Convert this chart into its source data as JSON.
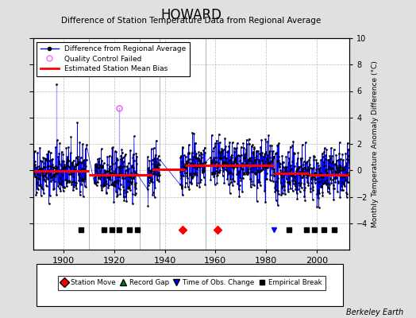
{
  "title": "HOWARD",
  "subtitle": "Difference of Station Temperature Data from Regional Average",
  "ylabel_right": "Monthly Temperature Anomaly Difference (°C)",
  "ylim": [
    -6,
    10
  ],
  "xlim": [
    1888,
    2013
  ],
  "yticks": [
    -4,
    -2,
    0,
    2,
    4,
    6,
    8,
    10
  ],
  "xticks": [
    1900,
    1920,
    1940,
    1960,
    1980,
    2000
  ],
  "background_color": "#e0e0e0",
  "plot_bg_color": "#ffffff",
  "grid_color": "#bbbbbb",
  "seed": 42,
  "station_moves": [
    1947,
    1961
  ],
  "empirical_breaks": [
    1907,
    1916,
    1919,
    1922,
    1926,
    1929,
    1989,
    1996,
    1999,
    2003,
    2007
  ],
  "time_of_obs_change": [
    1983
  ],
  "event_y": -4.5,
  "qc_failed_x": [
    1922
  ],
  "qc_failed_y": [
    4.7
  ],
  "spike1_x": 1897,
  "spike1_y": 6.5,
  "gap_vlines": [
    1910,
    1930,
    1938,
    1956
  ],
  "segment_bias": [
    {
      "x_start": 1888,
      "x_end": 1910,
      "bias": -0.05
    },
    {
      "x_start": 1910,
      "x_end": 1935,
      "bias": -0.35
    },
    {
      "x_start": 1935,
      "x_end": 1948,
      "bias": 0.1
    },
    {
      "x_start": 1948,
      "x_end": 1983,
      "bias": 0.35
    },
    {
      "x_start": 1983,
      "x_end": 1997,
      "bias": -0.25
    },
    {
      "x_start": 1997,
      "x_end": 2013,
      "bias": -0.35
    }
  ],
  "gap_periods": [
    {
      "x_start": 1909,
      "x_end": 1912
    },
    {
      "x_start": 1929,
      "x_end": 1933
    },
    {
      "x_start": 1938,
      "x_end": 1946
    },
    {
      "x_start": 1956,
      "x_end": 1958
    }
  ],
  "annotation": "Berkeley Earth",
  "noise_std": 0.95
}
